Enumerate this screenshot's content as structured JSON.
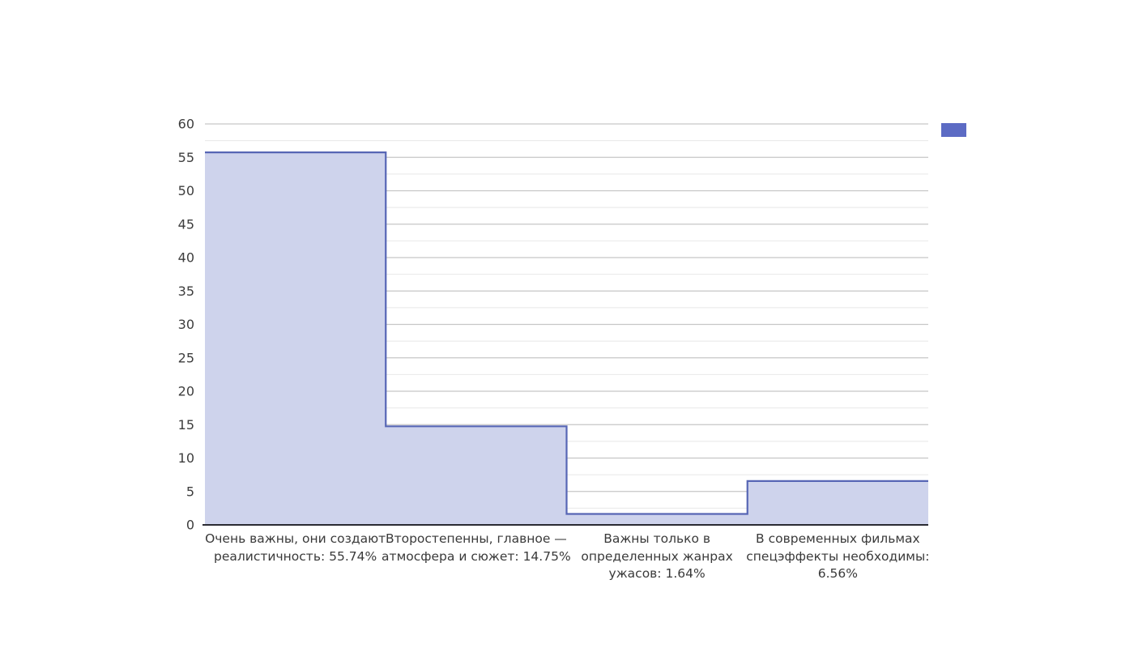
{
  "chart_data": {
    "type": "area",
    "step_mode": "post",
    "title": "",
    "categories": [
      "Очень важны, они создают реалистичность: 55.74%",
      "Второстепенны, главное — атмосфера и сюжет: 14.75%",
      "Важны только в определенных жанрах ужасов: 1.64%",
      "В современных фильмах спецэффекты необходимы: 6.56%"
    ],
    "x_tick_lines": [
      [
        "Очень важны, они создают",
        "реалистичность: 55.74%"
      ],
      [
        "Второстепенны, главное —",
        "атмосфера и сюжет: 14.75%"
      ],
      [
        "Важны только в",
        "определенных жанрах",
        "ужасов: 1.64%"
      ],
      [
        "В современных фильмах",
        "спецэффекты необходимы:",
        "6.56%"
      ]
    ],
    "values": [
      55.74,
      14.75,
      1.64,
      6.56
    ],
    "xlabel": "",
    "ylabel": "",
    "ylim": [
      0,
      60
    ],
    "yticks": [
      0,
      5,
      10,
      15,
      20,
      25,
      30,
      35,
      40,
      45,
      50,
      55,
      60
    ],
    "minor_grid_step": 2.5,
    "grid": true,
    "legend": {
      "position": "top-right",
      "label": "",
      "swatch_color": "#5c6bc4"
    },
    "colors": {
      "line": "#5766b5",
      "fill": "#ced3ec",
      "major_grid": "#c6c6c6",
      "minor_grid": "#e8e8e8",
      "axis_line": "#2b2b33",
      "tick_text": "#3d3d3d",
      "background": "#ffffff"
    }
  }
}
